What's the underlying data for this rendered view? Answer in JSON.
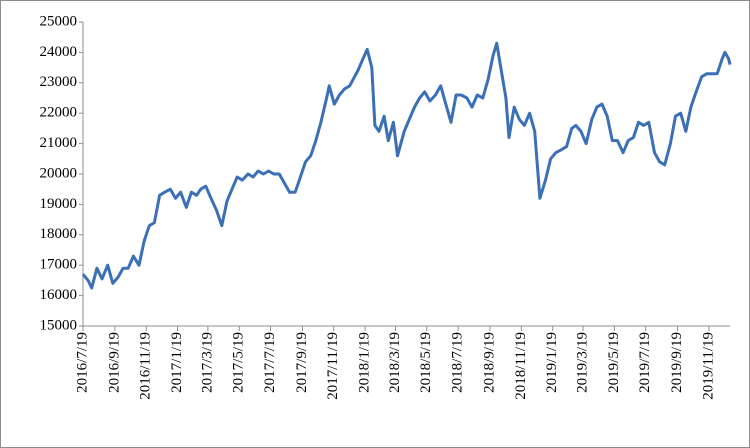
{
  "chart_data": {
    "type": "line",
    "x": [
      "2016/7/19",
      "2016/7/29",
      "2016/8/5",
      "2016/8/15",
      "2016/8/25",
      "2016/9/5",
      "2016/9/15",
      "2016/9/25",
      "2016/10/5",
      "2016/10/15",
      "2016/10/25",
      "2016/11/5",
      "2016/11/15",
      "2016/11/25",
      "2016/12/5",
      "2016/12/15",
      "2016/12/25",
      "2017/1/5",
      "2017/1/15",
      "2017/1/25",
      "2017/2/5",
      "2017/2/15",
      "2017/2/25",
      "2017/3/5",
      "2017/3/15",
      "2017/3/25",
      "2017/4/5",
      "2017/4/15",
      "2017/4/25",
      "2017/5/5",
      "2017/5/15",
      "2017/5/25",
      "2017/6/5",
      "2017/6/15",
      "2017/6/25",
      "2017/7/5",
      "2017/7/15",
      "2017/7/25",
      "2017/8/5",
      "2017/8/15",
      "2017/8/25",
      "2017/9/5",
      "2017/9/15",
      "2017/9/25",
      "2017/10/5",
      "2017/10/15",
      "2017/10/25",
      "2017/11/5",
      "2017/11/10",
      "2017/11/20",
      "2017/11/30",
      "2017/12/10",
      "2017/12/20",
      "2018/1/5",
      "2018/1/15",
      "2018/1/23",
      "2018/2/1",
      "2018/2/7",
      "2018/2/15",
      "2018/2/25",
      "2018/3/5",
      "2018/3/15",
      "2018/3/23",
      "2018/4/5",
      "2018/4/15",
      "2018/4/25",
      "2018/5/5",
      "2018/5/15",
      "2018/5/25",
      "2018/6/5",
      "2018/6/15",
      "2018/6/25",
      "2018/7/5",
      "2018/7/15",
      "2018/7/25",
      "2018/8/5",
      "2018/8/15",
      "2018/8/25",
      "2018/9/5",
      "2018/9/15",
      "2018/9/25",
      "2018/10/2",
      "2018/10/10",
      "2018/10/20",
      "2018/10/26",
      "2018/11/5",
      "2018/11/15",
      "2018/11/25",
      "2018/12/5",
      "2018/12/15",
      "2018/12/25",
      "2019/1/5",
      "2019/1/15",
      "2019/1/25",
      "2019/2/5",
      "2019/2/15",
      "2019/2/25",
      "2019/3/5",
      "2019/3/15",
      "2019/3/25",
      "2019/4/5",
      "2019/4/15",
      "2019/4/25",
      "2019/5/5",
      "2019/5/15",
      "2019/5/25",
      "2019/6/5",
      "2019/6/15",
      "2019/6/25",
      "2019/7/5",
      "2019/7/15",
      "2019/7/25",
      "2019/8/5",
      "2019/8/15",
      "2019/8/25",
      "2019/9/5",
      "2019/9/15",
      "2019/9/25",
      "2019/10/5",
      "2019/10/15",
      "2019/10/25",
      "2019/11/5",
      "2019/11/15",
      "2019/11/25",
      "2019/12/5",
      "2019/12/15",
      "2019/12/20",
      "2019/12/27",
      "2019/12/30"
    ],
    "values": [
      16700,
      16500,
      16250,
      16900,
      16550,
      17000,
      16400,
      16600,
      16900,
      16900,
      17300,
      17000,
      17800,
      18300,
      18400,
      19300,
      19400,
      19500,
      19200,
      19400,
      18900,
      19400,
      19300,
      19500,
      19600,
      19200,
      18800,
      18300,
      19100,
      19500,
      19900,
      19800,
      20000,
      19900,
      20100,
      20000,
      20100,
      20000,
      20000,
      19700,
      19400,
      19400,
      19900,
      20400,
      20600,
      21100,
      21700,
      22500,
      22900,
      22300,
      22600,
      22800,
      22900,
      23400,
      23800,
      24100,
      23500,
      21600,
      21400,
      21900,
      21100,
      21700,
      20600,
      21400,
      21800,
      22200,
      22500,
      22700,
      22400,
      22600,
      22900,
      22300,
      21700,
      22600,
      22600,
      22500,
      22200,
      22600,
      22500,
      23100,
      23900,
      24300,
      23500,
      22500,
      21200,
      22200,
      21800,
      21600,
      22000,
      21400,
      19200,
      19800,
      20500,
      20700,
      20800,
      20900,
      21500,
      21600,
      21400,
      21000,
      21800,
      22200,
      22300,
      21900,
      21100,
      21100,
      20700,
      21100,
      21200,
      21700,
      21600,
      21700,
      20700,
      20400,
      20300,
      21000,
      21900,
      22000,
      21400,
      22200,
      22700,
      23200,
      23300,
      23300,
      23300,
      23800,
      24000,
      23800,
      23600
    ],
    "color": "#3b6fb6",
    "xlim": [
      "2016/7/19",
      "2019/12/30"
    ],
    "xticks": [
      "2016/7/19",
      "2016/9/19",
      "2016/11/19",
      "2017/1/19",
      "2017/3/19",
      "2017/5/19",
      "2017/7/19",
      "2017/9/19",
      "2017/11/19",
      "2018/1/19",
      "2018/3/19",
      "2018/5/19",
      "2018/7/19",
      "2018/9/19",
      "2018/11/19",
      "2019/1/19",
      "2019/3/19",
      "2019/5/19",
      "2019/7/19",
      "2019/9/19",
      "2019/11/19"
    ],
    "ylim": [
      15000,
      25000
    ],
    "yticks": [
      15000,
      16000,
      17000,
      18000,
      19000,
      20000,
      21000,
      22000,
      23000,
      24000,
      25000
    ],
    "grid": false
  }
}
